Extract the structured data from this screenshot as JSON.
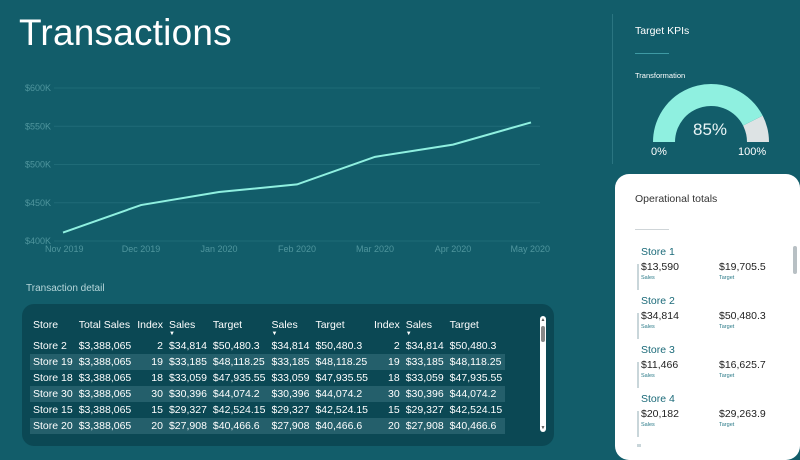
{
  "title": "Transactions",
  "chart_data": {
    "type": "line",
    "categories": [
      "Nov 2019",
      "Dec 2019",
      "Jan 2020",
      "Feb 2020",
      "Mar 2020",
      "Apr 2020",
      "May 2020"
    ],
    "values": [
      411000,
      447000,
      464000,
      474000,
      510000,
      526000,
      555000
    ],
    "yticks": [
      "$400K",
      "$450K",
      "$500K",
      "$550K",
      "$600K"
    ],
    "ylim": [
      400000,
      600000
    ],
    "line_color": "#8ff0e0",
    "grid": true
  },
  "transaction_detail": {
    "label": "Transaction detail",
    "columns": [
      "Store",
      "Total Sales",
      "Index",
      "Sales",
      "Target",
      "Sales",
      "Target",
      "Index",
      "Sales",
      "Target"
    ],
    "sorted_columns": [
      3,
      5,
      8
    ],
    "rows": [
      [
        "Store 2",
        "$3,388,065",
        "2",
        "$34,814",
        "$50,480.3",
        "$34,814",
        "$50,480.3",
        "2",
        "$34,814",
        "$50,480.3"
      ],
      [
        "Store 19",
        "$3,388,065",
        "19",
        "$33,185",
        "$48,118.25",
        "$33,185",
        "$48,118.25",
        "19",
        "$33,185",
        "$48,118.25"
      ],
      [
        "Store 18",
        "$3,388,065",
        "18",
        "$33,059",
        "$47,935.55",
        "$33,059",
        "$47,935.55",
        "18",
        "$33,059",
        "$47,935.55"
      ],
      [
        "Store 30",
        "$3,388,065",
        "30",
        "$30,396",
        "$44,074.2",
        "$30,396",
        "$44,074.2",
        "30",
        "$30,396",
        "$44,074.2"
      ],
      [
        "Store 15",
        "$3,388,065",
        "15",
        "$29,327",
        "$42,524.15",
        "$29,327",
        "$42,524.15",
        "15",
        "$29,327",
        "$42,524.15"
      ],
      [
        "Store 20",
        "$3,388,065",
        "20",
        "$27,908",
        "$40,466.6",
        "$27,908",
        "$40,466.6",
        "20",
        "$27,908",
        "$40,466.6"
      ]
    ]
  },
  "kpi": {
    "title": "Target KPIs",
    "subtitle": "Transformation",
    "value_label": "85%",
    "value": 0.85,
    "min_label": "0%",
    "max_label": "100%",
    "fill_color": "#8ff0e0",
    "track_color": "#dde3e4"
  },
  "operational": {
    "title": "Operational totals",
    "stores": [
      {
        "name": "Store 1",
        "sales": "$13,590",
        "target": "$19,705.5",
        "sales_label": "Sales",
        "target_label": "Target"
      },
      {
        "name": "Store 2",
        "sales": "$34,814",
        "target": "$50,480.3",
        "sales_label": "Sales",
        "target_label": "Target"
      },
      {
        "name": "Store 3",
        "sales": "$11,466",
        "target": "$16,625.7",
        "sales_label": "Sales",
        "target_label": "Target"
      },
      {
        "name": "Store 4",
        "sales": "$20,182",
        "target": "$29,263.9",
        "sales_label": "Sales",
        "target_label": "Target"
      }
    ]
  }
}
